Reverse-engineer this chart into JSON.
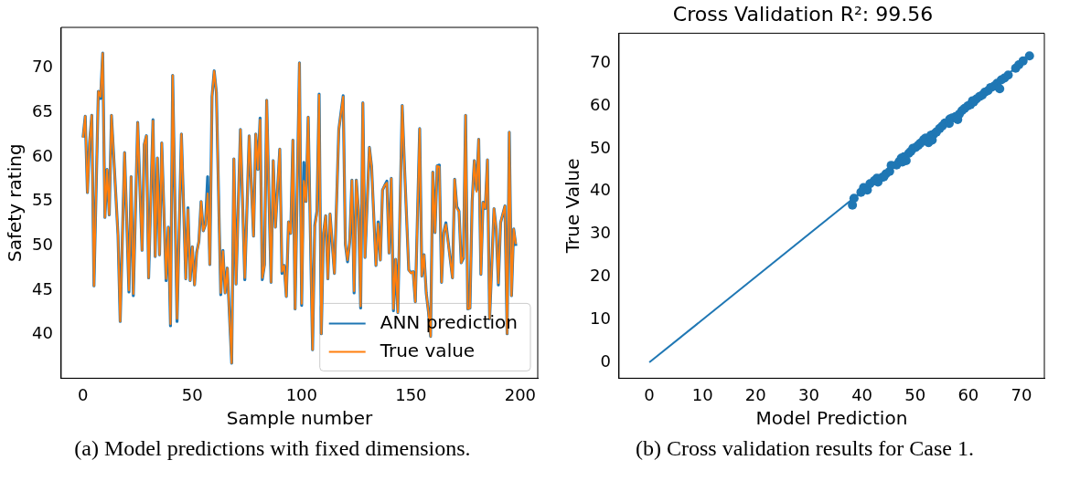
{
  "chart_data": [
    {
      "type": "line",
      "xlabel": "Sample number",
      "ylabel": "Safety rating",
      "xlim": [
        -10,
        208
      ],
      "xticks": [
        0,
        50,
        100,
        150,
        200
      ],
      "ylim": [
        35.1,
        74.6
      ],
      "yticks": [
        40,
        45,
        50,
        55,
        60,
        65,
        70
      ],
      "grid": false,
      "legend": "bottom right",
      "marker": "none",
      "annotations": [
        "(a) Model predictions with fixed dimensions."
      ],
      "series": [
        {
          "name": "ANN prediction",
          "color": "#1f77b4",
          "x": [
            0,
            1,
            2,
            3,
            4,
            5,
            7,
            8,
            9,
            10,
            11,
            12,
            13,
            16,
            17,
            19,
            21,
            22,
            23,
            25,
            27,
            28,
            29,
            30,
            32,
            33,
            34,
            35,
            36,
            38,
            39,
            40,
            41,
            43,
            45,
            47,
            48,
            49,
            50,
            51,
            52,
            53,
            54,
            55,
            56,
            57,
            58,
            59,
            60,
            61,
            63,
            64,
            65,
            66,
            68,
            69,
            70,
            72,
            74,
            76,
            78,
            79,
            80,
            81,
            82,
            83,
            84,
            86,
            87,
            88,
            90,
            91,
            92,
            93,
            94,
            95,
            96,
            97,
            99,
            100,
            101,
            102,
            103,
            105,
            106,
            107,
            108,
            109,
            110,
            111,
            112,
            113,
            115,
            117,
            119,
            120,
            121,
            122,
            123,
            124,
            125,
            126,
            127,
            128,
            129,
            131,
            132,
            134,
            135,
            136,
            137,
            138,
            139,
            140,
            141,
            142,
            143,
            144,
            146,
            147,
            149,
            150,
            151,
            152,
            154,
            155,
            156,
            157,
            158,
            159,
            160,
            161,
            162,
            163,
            164,
            165,
            166,
            169,
            170,
            171,
            172,
            173,
            174,
            175,
            176,
            177,
            178,
            179,
            180,
            181,
            182,
            183,
            184,
            185,
            186,
            188,
            189,
            190,
            191,
            193,
            194,
            195,
            196,
            197,
            198
          ],
          "values": [
            62.2,
            64.6,
            56.0,
            61.7,
            64.7,
            45.5,
            67.4,
            66.6,
            71.7,
            53.2,
            58.6,
            53.5,
            64.7,
            51.2,
            41.5,
            60.5,
            44.8,
            57.8,
            44.4,
            63.9,
            49.5,
            61.4,
            62.4,
            46.4,
            64.2,
            48.8,
            59.9,
            49.0,
            61.6,
            46.1,
            52.1,
            41.0,
            69.2,
            41.5,
            62.6,
            46.3,
            54.3,
            46.1,
            49.9,
            45.6,
            49.3,
            50.5,
            55.0,
            51.7,
            52.4,
            57.8,
            47.9,
            66.8,
            69.7,
            67.3,
            44.5,
            49.5,
            44.7,
            47.5,
            36.8,
            59.8,
            45.7,
            63.1,
            46.2,
            62.4,
            51.1,
            62.6,
            58.6,
            64.4,
            46.2,
            47.9,
            66.4,
            45.9,
            59.6,
            52.1,
            60.9,
            46.9,
            47.8,
            44.3,
            52.7,
            51.4,
            61.9,
            42.9,
            70.6,
            43.3,
            59.4,
            55.0,
            64.5,
            38.3,
            52.3,
            53.9,
            67.1,
            40.1,
            51.4,
            53.4,
            46.3,
            53.6,
            46.9,
            63.1,
            66.9,
            50.2,
            48.2,
            50.5,
            57.4,
            44.7,
            57.4,
            54.0,
            43.0,
            66.1,
            48.7,
            61.1,
            58.9,
            47.8,
            52.7,
            48.4,
            56.3,
            56.8,
            57.3,
            49.2,
            57.6,
            42.7,
            48.5,
            42.5,
            65.8,
            59.2,
            47.3,
            47.0,
            47.1,
            43.7,
            63.2,
            46.6,
            49.0,
            44.7,
            42.6,
            39.8,
            58.3,
            51.5,
            59.0,
            59.1,
            45.9,
            51.5,
            52.6,
            46.4,
            57.5,
            54.4,
            53.9,
            48.1,
            48.6,
            64.7,
            42.9,
            43.0,
            55.0,
            59.6,
            56.3,
            62.0,
            46.8,
            54.9,
            54.2,
            59.7,
            41.8,
            54.2,
            51.9,
            45.6,
            52.6,
            54.5,
            40.1,
            62.8,
            44.4,
            51.9,
            50.0
          ]
        },
        {
          "name": "True value",
          "color": "#ff7f0e",
          "x": [
            0,
            1,
            2,
            3,
            4,
            5,
            7,
            8,
            9,
            10,
            11,
            12,
            13,
            16,
            17,
            19,
            21,
            22,
            23,
            25,
            27,
            28,
            29,
            30,
            32,
            33,
            34,
            35,
            36,
            38,
            39,
            40,
            41,
            43,
            45,
            47,
            48,
            49,
            50,
            51,
            52,
            53,
            54,
            55,
            56,
            57,
            58,
            59,
            60,
            61,
            63,
            64,
            65,
            66,
            68,
            69,
            70,
            72,
            74,
            76,
            78,
            79,
            80,
            81,
            82,
            83,
            84,
            86,
            87,
            88,
            90,
            91,
            92,
            93,
            94,
            95,
            96,
            97,
            99,
            100,
            101,
            102,
            103,
            105,
            106,
            107,
            108,
            109,
            110,
            111,
            112,
            113,
            115,
            117,
            119,
            120,
            121,
            122,
            123,
            124,
            125,
            126,
            127,
            128,
            129,
            131,
            132,
            134,
            135,
            136,
            137,
            138,
            139,
            140,
            141,
            142,
            143,
            144,
            146,
            147,
            149,
            150,
            151,
            152,
            154,
            155,
            156,
            157,
            158,
            159,
            160,
            161,
            162,
            163,
            164,
            165,
            166,
            169,
            170,
            171,
            172,
            173,
            174,
            175,
            176,
            177,
            178,
            179,
            180,
            181,
            182,
            183,
            184,
            185,
            186,
            188,
            189,
            190,
            191,
            193,
            194,
            195,
            196,
            197,
            198
          ],
          "values": [
            62.2,
            64.6,
            56.0,
            61.7,
            64.7,
            45.5,
            67.4,
            66.8,
            71.7,
            53.2,
            58.6,
            53.5,
            64.7,
            51.2,
            41.5,
            60.5,
            45.0,
            57.8,
            44.6,
            63.9,
            49.5,
            61.4,
            62.4,
            46.4,
            64.1,
            48.8,
            59.9,
            49.0,
            61.6,
            46.3,
            52.1,
            41.2,
            69.2,
            41.8,
            62.6,
            46.3,
            54.1,
            46.1,
            49.9,
            45.6,
            49.1,
            50.5,
            55.0,
            51.7,
            52.4,
            55.9,
            47.9,
            66.8,
            69.7,
            67.3,
            44.7,
            49.4,
            44.7,
            47.5,
            36.8,
            59.8,
            45.7,
            63.1,
            46.4,
            62.4,
            51.1,
            62.6,
            58.6,
            64.2,
            46.4,
            47.8,
            66.4,
            45.9,
            59.6,
            52.1,
            60.9,
            47.1,
            47.8,
            44.3,
            52.7,
            51.4,
            61.9,
            42.9,
            70.6,
            43.5,
            57.3,
            55.0,
            64.5,
            38.3,
            52.1,
            53.6,
            67.0,
            40.1,
            51.4,
            53.4,
            46.3,
            53.6,
            46.9,
            63.1,
            66.8,
            50.2,
            48.4,
            50.5,
            57.4,
            44.9,
            57.4,
            54.0,
            43.2,
            66.1,
            48.7,
            61.1,
            58.9,
            47.8,
            52.5,
            48.4,
            56.3,
            56.8,
            57.1,
            49.2,
            57.6,
            42.9,
            48.5,
            42.5,
            65.8,
            59.2,
            47.3,
            46.9,
            47.1,
            43.7,
            63.2,
            46.6,
            49.0,
            44.7,
            42.6,
            39.8,
            58.3,
            51.5,
            59.0,
            58.9,
            45.9,
            51.5,
            52.4,
            46.4,
            57.5,
            54.2,
            53.9,
            48.1,
            48.8,
            64.7,
            42.9,
            43.0,
            55.0,
            59.6,
            56.1,
            62.0,
            46.8,
            54.9,
            54.2,
            59.7,
            41.8,
            54.2,
            51.9,
            45.8,
            52.6,
            54.5,
            40.1,
            62.8,
            44.4,
            51.9,
            50.2
          ]
        }
      ]
    },
    {
      "type": "scatter",
      "title": "Cross Validation R²: 99.56",
      "xlabel": "Model Prediction",
      "ylabel": "True Value",
      "xlim": [
        -5.7,
        74.3
      ],
      "xticks": [
        0,
        10,
        20,
        30,
        40,
        50,
        60,
        70
      ],
      "ylim": [
        -3.7,
        77
      ],
      "yticks": [
        0,
        10,
        20,
        30,
        40,
        50,
        60,
        70
      ],
      "grid": false,
      "legend": false,
      "marker": "circle",
      "annotations": [
        "(b) Cross validation results for Case 1."
      ],
      "series": [
        {
          "type": "scatter",
          "color": "#1f77b4",
          "x": [
            38.2,
            38.5,
            39.8,
            40.3,
            41.0,
            41.5,
            42.3,
            43.0,
            43.8,
            44.5,
            45.2,
            46.5,
            47.0,
            47.4,
            47.9,
            48.3,
            48.8,
            49.2,
            49.6,
            50.1,
            50.6,
            51.0,
            51.6,
            52.0,
            52.5,
            53.0,
            53.5,
            54.0,
            54.6,
            55.1,
            55.6,
            56.5,
            57.0,
            57.6,
            58.0,
            58.3,
            58.8,
            59.3,
            59.9,
            60.4,
            61.0,
            61.5,
            62.1,
            62.6,
            63.1,
            63.7,
            64.2,
            64.8,
            65.4,
            65.9,
            66.2,
            66.8,
            67.5,
            68.9,
            69.5,
            70.3,
            71.5,
            45.5,
            47.6,
            53.2,
            56.4,
            60.8,
            44.1,
            42.8
          ],
          "values": [
            36.8,
            38.4,
            39.8,
            40.9,
            40.3,
            41.8,
            42.5,
            42.2,
            43.3,
            44.1,
            44.7,
            46.2,
            47.0,
            47.8,
            48.1,
            47.2,
            48.9,
            49.4,
            50.1,
            50.3,
            50.8,
            51.3,
            52.1,
            52.5,
            51.4,
            53.2,
            53.4,
            53.9,
            54.7,
            55.3,
            56.0,
            56.9,
            57.2,
            57.5,
            56.8,
            58.1,
            58.9,
            59.4,
            60.0,
            60.3,
            60.9,
            61.6,
            62.2,
            62.5,
            63.2,
            63.6,
            64.3,
            64.6,
            65.3,
            64.0,
            66.1,
            66.5,
            67.2,
            68.8,
            69.6,
            70.5,
            71.7,
            46.1,
            46.9,
            52.0,
            55.9,
            61.2,
            43.4,
            43.1
          ]
        },
        {
          "type": "line",
          "marker": "none",
          "color": "#1f77b4",
          "x": [
            0,
            71.7
          ],
          "values": [
            0,
            71.7
          ]
        }
      ]
    }
  ]
}
